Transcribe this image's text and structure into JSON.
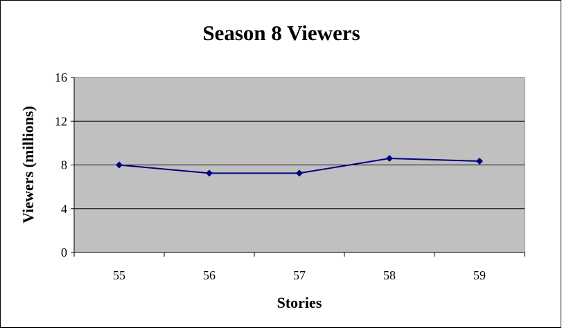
{
  "chart_data": {
    "type": "line",
    "title": "Season 8 Viewers",
    "xlabel": "Stories",
    "ylabel": "Viewers (millions)",
    "categories": [
      "55",
      "56",
      "57",
      "58",
      "59"
    ],
    "series": [
      {
        "values": [
          8.0,
          7.25,
          7.25,
          8.6,
          8.35
        ],
        "color": "#000080"
      }
    ],
    "ylim": [
      0,
      16
    ],
    "yticks": [
      "0",
      "4",
      "8",
      "12",
      "16"
    ],
    "grid": true,
    "legend": "none",
    "plot_background": "#C0C0C0"
  }
}
